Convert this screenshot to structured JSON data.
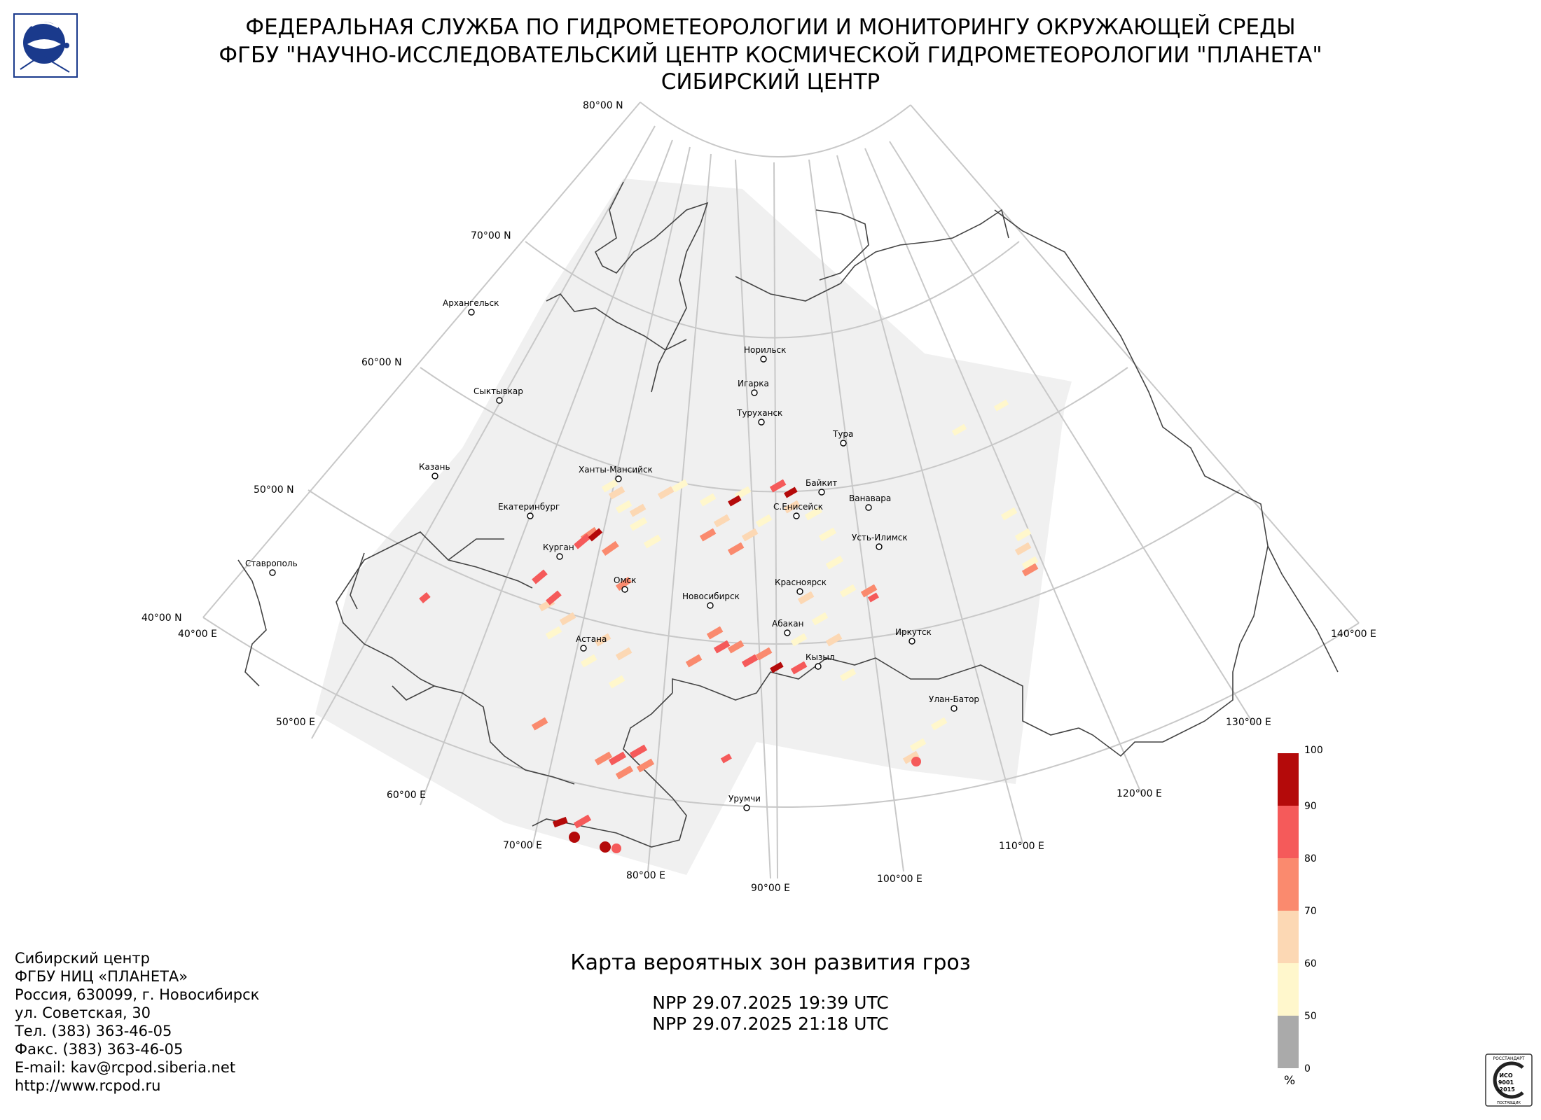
{
  "header": {
    "line1": "ФЕДЕРАЛЬНАЯ СЛУЖБА ПО ГИДРОМЕТЕОРОЛОГИИ И МОНИТОРИНГУ ОКРУЖАЮЩЕЙ СРЕДЫ",
    "line2": "ФГБУ \"НАУЧНО-ИССЛЕДОВАТЕЛЬСКИЙ ЦЕНТР КОСМИЧЕСКОЙ ГИДРОМЕТЕОРОЛОГИИ \"ПЛАНЕТА\"",
    "line3": "СИБИРСКИЙ ЦЕНТР"
  },
  "logo": {
    "icon": "roshydromet-logo-icon",
    "color": "#1a3a8c"
  },
  "map": {
    "latitude_labels": [
      "80°00 N",
      "70°00 N",
      "60°00 N",
      "50°00 N",
      "40°00 N"
    ],
    "longitude_labels": [
      "40°00 E",
      "50°00 E",
      "60°00 E",
      "70°00 E",
      "80°00 E",
      "90°00 E",
      "100°00 E",
      "110°00 E",
      "120°00 E",
      "130°00 E",
      "140°00 E"
    ],
    "cities": [
      "Архангельск",
      "Сыктывкар",
      "Казань",
      "Екатеринбург",
      "Ставрополь",
      "Курган",
      "Омск",
      "Астана",
      "Ханты-Мансийск",
      "Норильск",
      "Игарка",
      "Туруханск",
      "Тура",
      "Байкит",
      "Ванавара",
      "С.Енисейск",
      "Усть-Илимск",
      "Красноярск",
      "Новосибирск",
      "Абакан",
      "Кызыл",
      "Иркутск",
      "Улан-Батор",
      "Урумчи"
    ],
    "colors": {
      "grid": "#c8c8c8",
      "coverage": "#f0f0f0",
      "coast": "#444444"
    }
  },
  "map_title": "Карта вероятных зон развития гроз",
  "passes": [
    "NPP 29.07.2025  19:39 UTC",
    "NPP 29.07.2025  21:18 UTC"
  ],
  "legend": {
    "unit": "%",
    "ticks": [
      "100",
      "90",
      "80",
      "70",
      "60",
      "50",
      "0"
    ],
    "colors": [
      "#b40a0a",
      "#f55a5a",
      "#fa8a6e",
      "#fcd8b4",
      "#fff7cc",
      "#aaaaaa"
    ]
  },
  "contacts": {
    "line1": "Сибирский центр",
    "line2": "ФГБУ НИЦ «ПЛАНЕТА»",
    "line3": "Россия, 630099, г. Новосибирск",
    "line4": "ул. Советская, 30",
    "line5": "Тел. (383) 363-46-05",
    "line6": "Факс. (383) 363-46-05",
    "line7": "E-mail: kav@rcpod.siberia.net",
    "line8": "http://www.rcpod.ru"
  },
  "iso_badge": {
    "icon": "iso-certification-badge-icon",
    "top_text": "РОССТАНДАРТ",
    "iso_text": "ИСО",
    "number": "9001",
    "year": "-2015",
    "bottom_text": "ПОСТАВЩИК"
  }
}
